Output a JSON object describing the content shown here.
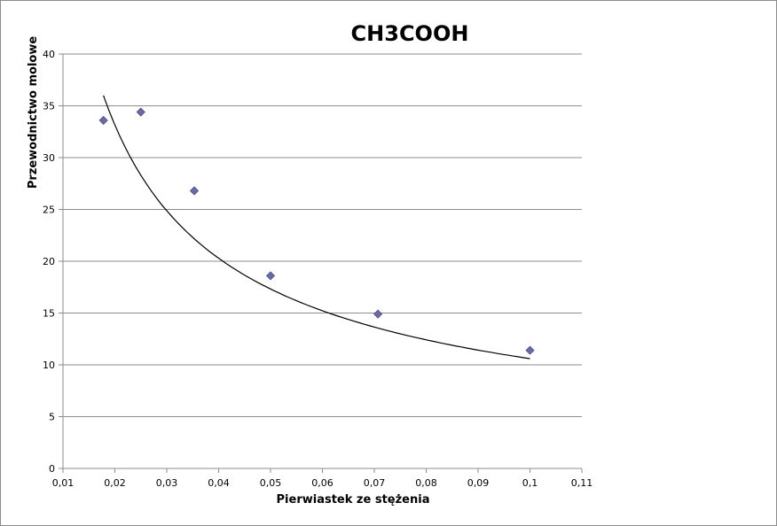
{
  "chart_data": {
    "type": "scatter",
    "title": "CH3COOH",
    "xlabel": "Pierwiastek ze stężenia",
    "ylabel": "Przewodnictwo molowe",
    "xlim": [
      0.01,
      0.11
    ],
    "ylim": [
      0,
      40
    ],
    "x_ticks": [
      0.01,
      0.02,
      0.03,
      0.04,
      0.05,
      0.06,
      0.07,
      0.08,
      0.09,
      0.1,
      0.11
    ],
    "x_tick_labels": [
      "0,01",
      "0,02",
      "0,03",
      "0,04",
      "0,05",
      "0,06",
      "0,07",
      "0,08",
      "0,09",
      "0,1",
      "0,11"
    ],
    "y_ticks": [
      0,
      5,
      10,
      15,
      20,
      25,
      30,
      35,
      40
    ],
    "y_tick_labels": [
      "0",
      "5",
      "10",
      "15",
      "20",
      "25",
      "30",
      "35",
      "40"
    ],
    "grid": "horizontal",
    "legend": "none",
    "series": [
      {
        "marker": "diamond",
        "color": "#6a6aa6",
        "points": [
          {
            "x": 0.0178,
            "y": 33.6
          },
          {
            "x": 0.025,
            "y": 34.4
          },
          {
            "x": 0.0353,
            "y": 26.8
          },
          {
            "x": 0.05,
            "y": 18.6
          },
          {
            "x": 0.0707,
            "y": 14.9
          },
          {
            "x": 0.1,
            "y": 11.4
          }
        ]
      }
    ],
    "trendline": {
      "type": "power",
      "color": "#000000",
      "x_range": [
        0.0178,
        0.1
      ],
      "y_at_start": 36.0,
      "y_at_end": 10.6
    }
  }
}
